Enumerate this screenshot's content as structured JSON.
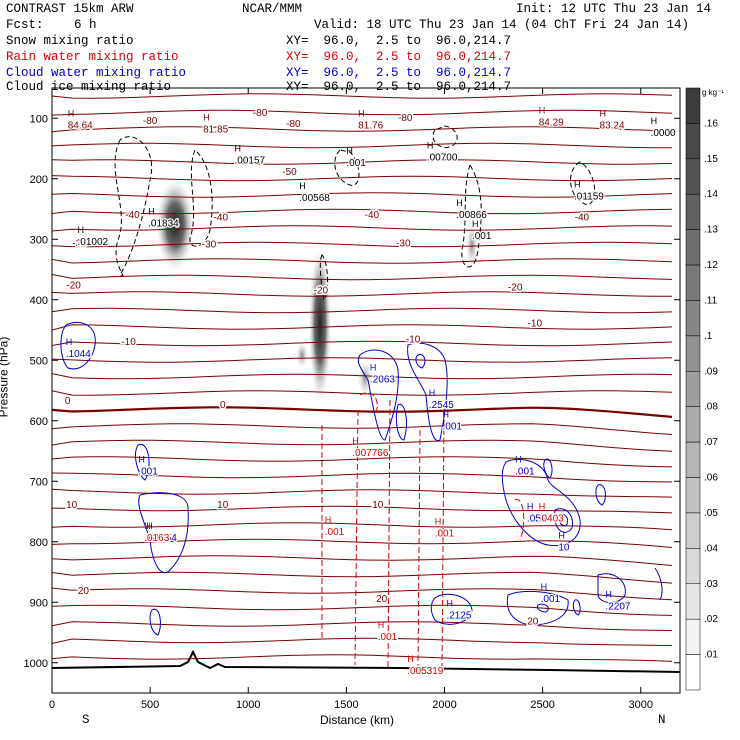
{
  "header": {
    "model": "CONTRAST 15km ARW",
    "org": "NCAR/MMM",
    "init": "Init: 12 UTC Thu 23 Jan 14",
    "fcst_label": "Fcst:",
    "fcst_value": "6 h",
    "valid": "Valid: 18 UTC Thu 23 Jan 14 (04 ChT Fri 24 Jan 14)"
  },
  "legend": [
    {
      "name": "Snow mixing ratio",
      "xy": "XY=  96.0,  2.5 to  96.0,214.7",
      "color": "#000000"
    },
    {
      "name": "Rain water mixing ratio",
      "xy": "XY=  96.0,  2.5 to  96.0,214.7",
      "color": "#dd0000"
    },
    {
      "name": "Cloud water mixing ratio",
      "xy": "XY=  96.0,  2.5 to  96.0,214.7",
      "color": "#0000cc"
    },
    {
      "name": "Cloud ice mixing ratio",
      "xy": "XY=  96.0,  2.5 to  96.0,214.7",
      "color": "#000000"
    }
  ],
  "colorbar": {
    "unit": "g kg⁻¹",
    "levels": [
      ".16",
      ".15",
      ".14",
      ".13",
      ".12",
      ".11",
      ".1",
      ".09",
      ".08",
      ".07",
      ".06",
      ".05",
      ".04",
      ".03",
      ".02",
      ".01"
    ]
  },
  "chart_data": {
    "type": "contour",
    "xlabel": "Distance (km)",
    "ylabel": "Pressure (hPa)",
    "xlim": [
      0,
      3200
    ],
    "ylim": [
      1050,
      50
    ],
    "xticks": [
      "0",
      "500",
      "1000",
      "1500",
      "2000",
      "2500",
      "3000"
    ],
    "xtick_values": [
      0,
      500,
      1000,
      1500,
      2000,
      2500,
      3000
    ],
    "yticks": [
      "100",
      "200",
      "300",
      "400",
      "500",
      "600",
      "700",
      "800",
      "900",
      "1000"
    ],
    "ytick_values": [
      100,
      200,
      300,
      400,
      500,
      600,
      700,
      800,
      900,
      1000
    ],
    "left_end": "S",
    "right_end": "N",
    "temperature_labels": [
      {
        "text": "-80",
        "x": 500,
        "p": 103
      },
      {
        "text": "-80",
        "x": 1060,
        "p": 90
      },
      {
        "text": "-80",
        "x": 1800,
        "p": 98
      },
      {
        "text": "-80",
        "x": 1230,
        "p": 108
      },
      {
        "text": "-50",
        "x": 1210,
        "p": 187
      },
      {
        "text": "-40",
        "x": 410,
        "p": 258
      },
      {
        "text": "-40",
        "x": 860,
        "p": 262
      },
      {
        "text": "-40",
        "x": 1630,
        "p": 258
      },
      {
        "text": "-40",
        "x": 2700,
        "p": 262
      },
      {
        "text": "-30",
        "x": 140,
        "p": 305
      },
      {
        "text": "-30",
        "x": 800,
        "p": 307
      },
      {
        "text": "-30",
        "x": 1790,
        "p": 305
      },
      {
        "text": "-20",
        "x": 110,
        "p": 375
      },
      {
        "text": "-20",
        "x": 1370,
        "p": 383
      },
      {
        "text": "-20",
        "x": 2360,
        "p": 378
      },
      {
        "text": "-10",
        "x": 390,
        "p": 468
      },
      {
        "text": "-10",
        "x": 1840,
        "p": 464
      },
      {
        "text": "-10",
        "x": 2460,
        "p": 438
      },
      {
        "text": "0",
        "x": 80,
        "p": 566
      },
      {
        "text": "0",
        "x": 870,
        "p": 572
      },
      {
        "text": "10",
        "x": 100,
        "p": 738
      },
      {
        "text": "10",
        "x": 870,
        "p": 738
      },
      {
        "text": "10",
        "x": 1660,
        "p": 738
      },
      {
        "text": "20",
        "x": 160,
        "p": 880
      },
      {
        "text": "20",
        "x": 1680,
        "p": 893
      },
      {
        "text": "20",
        "x": 2450,
        "p": 930
      }
    ],
    "max_markers": [
      {
        "text": "84.64",
        "x": 80,
        "p": 110,
        "color": "#7b0000"
      },
      {
        "text": "81.85",
        "x": 770,
        "p": 117,
        "color": "#7b0000"
      },
      {
        "text": "81.76",
        "x": 1560,
        "p": 110,
        "color": "#7b0000"
      },
      {
        "text": "84.29",
        "x": 2480,
        "p": 105,
        "color": "#7b0000"
      },
      {
        "text": "83.24",
        "x": 2790,
        "p": 110,
        "color": "#7b0000"
      },
      {
        "text": ".0000",
        "x": 3050,
        "p": 123,
        "color": "#000000"
      },
      {
        "text": ".00157",
        "x": 930,
        "p": 168,
        "color": "#000000"
      },
      {
        "text": ".001",
        "x": 1500,
        "p": 172,
        "color": "#000000"
      },
      {
        "text": ".00700",
        "x": 1910,
        "p": 163,
        "color": "#000000"
      },
      {
        "text": ".00568",
        "x": 1260,
        "p": 230,
        "color": "#000000"
      },
      {
        "text": ".01834",
        "x": 490,
        "p": 272,
        "color": "#000000"
      },
      {
        "text": ".00866",
        "x": 2060,
        "p": 258,
        "color": "#000000"
      },
      {
        "text": ".01159",
        "x": 2660,
        "p": 228,
        "color": "#000000"
      },
      {
        "text": ".01002",
        "x": 130,
        "p": 303,
        "color": "#000000"
      },
      {
        "text": ".001",
        "x": 2140,
        "p": 293,
        "color": "#000000"
      },
      {
        "text": ".1044",
        "x": 70,
        "p": 488,
        "color": "#0000cc"
      },
      {
        "text": ".2063",
        "x": 1620,
        "p": 530,
        "color": "#0000cc"
      },
      {
        "text": ".2545",
        "x": 1920,
        "p": 572,
        "color": "#0000cc"
      },
      {
        "text": ".001",
        "x": 1990,
        "p": 608,
        "color": "#0000cc"
      },
      {
        "text": ".001",
        "x": 440,
        "p": 682,
        "color": "#0000cc"
      },
      {
        "text": ".001",
        "x": 2360,
        "p": 682,
        "color": "#0000cc"
      },
      {
        "text": ".007766",
        "x": 1530,
        "p": 652,
        "color": "#dd0000"
      },
      {
        "text": ".01054",
        "x": 480,
        "p": 792,
        "color": "#0000cc"
      },
      {
        "text": ".0163",
        "x": 470,
        "p": 792,
        "color": "#dd0000"
      },
      {
        "text": ".05945",
        "x": 2420,
        "p": 760,
        "color": "#0000cc"
      },
      {
        "text": ".0403",
        "x": 2480,
        "p": 760,
        "color": "#dd0000"
      },
      {
        "text": ".001",
        "x": 1390,
        "p": 782,
        "color": "#dd0000"
      },
      {
        "text": ".001",
        "x": 1950,
        "p": 785,
        "color": "#dd0000"
      },
      {
        "text": ".001",
        "x": 1660,
        "p": 956,
        "color": "#dd0000"
      },
      {
        "text": ".001",
        "x": 2490,
        "p": 893,
        "color": "#0000cc"
      },
      {
        "text": ".2125",
        "x": 2010,
        "p": 920,
        "color": "#0000cc"
      },
      {
        "text": ".2207",
        "x": 2820,
        "p": 905,
        "color": "#0000cc"
      },
      {
        "text": ".005319",
        "x": 1810,
        "p": 1012,
        "color": "#dd0000"
      },
      {
        "text": "10",
        "x": 2580,
        "p": 808,
        "color": "#0000cc"
      }
    ]
  }
}
